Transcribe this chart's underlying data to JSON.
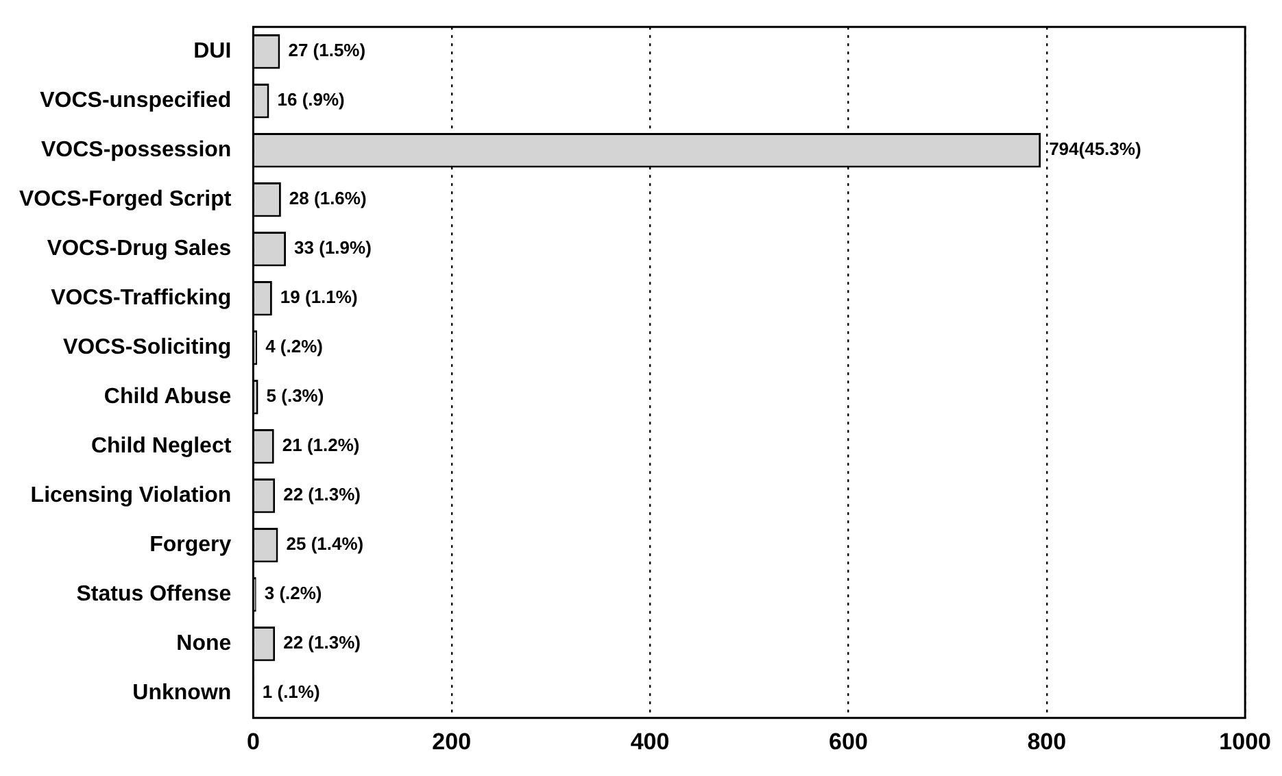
{
  "chart_data": {
    "type": "bar",
    "orientation": "horizontal",
    "categories": [
      "DUI",
      "VOCS-unspecified",
      "VOCS-possession",
      "VOCS-Forged Script",
      "VOCS-Drug Sales",
      "VOCS-Trafficking",
      "VOCS-Soliciting",
      "Child Abuse",
      "Child Neglect",
      "Licensing Violation",
      "Forgery",
      "Status Offense",
      "None",
      "Unknown"
    ],
    "values": [
      27,
      16,
      794,
      28,
      33,
      19,
      4,
      5,
      21,
      22,
      25,
      3,
      22,
      1
    ],
    "value_labels": [
      "27 (1.5%)",
      "16 (.9%)",
      "794(45.3%)",
      "28 (1.6%)",
      "33 (1.9%)",
      "19 (1.1%)",
      "4 (.2%)",
      "5 (.3%)",
      "21 (1.2%)",
      "22 (1.3%)",
      "25 (1.4%)",
      "3 (.2%)",
      "22 (1.3%)",
      "1 (.1%)"
    ],
    "color": "#d4d4d4",
    "xlim": [
      0,
      1000
    ],
    "xticks": [
      0,
      200,
      400,
      600,
      800,
      1000
    ],
    "grid": "x",
    "line_style": "dotted"
  }
}
